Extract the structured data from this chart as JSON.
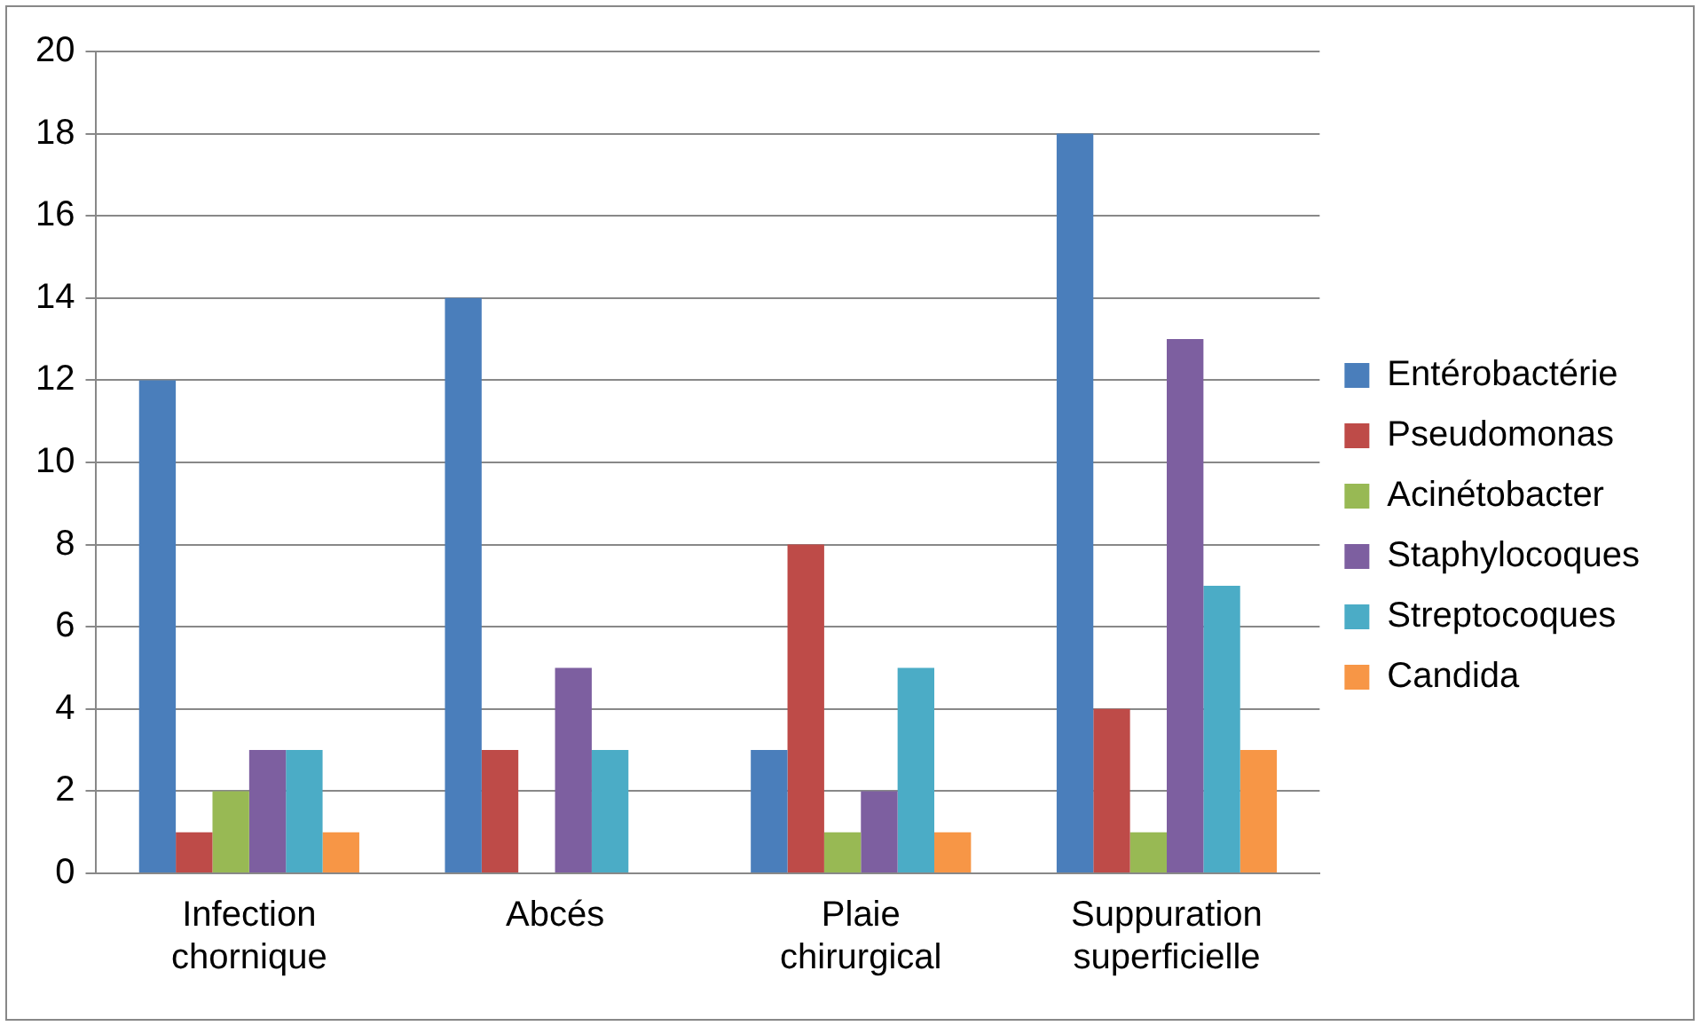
{
  "chart_data": {
    "type": "bar",
    "categories": [
      "Infection chornique",
      "Abcés",
      "Plaie chirurgical",
      "Suppuration superficielle"
    ],
    "series": [
      {
        "name": "Entérobactérie",
        "color": "#4a7ebb",
        "values": [
          12,
          14,
          3,
          18
        ]
      },
      {
        "name": "Pseudomonas",
        "color": "#be4b48",
        "values": [
          1,
          3,
          8,
          4
        ]
      },
      {
        "name": "Acinétobacter",
        "color": "#98b954",
        "values": [
          2,
          0,
          1,
          1
        ]
      },
      {
        "name": "Staphylocoques",
        "color": "#7d5fa0",
        "values": [
          3,
          5,
          2,
          13
        ]
      },
      {
        "name": "Streptocoques",
        "color": "#4bacc6",
        "values": [
          3,
          3,
          5,
          7
        ]
      },
      {
        "name": "Candida",
        "color": "#f79646",
        "values": [
          1,
          0,
          1,
          3
        ]
      }
    ],
    "ylim": [
      0,
      20
    ],
    "yticks": [
      0,
      2,
      4,
      6,
      8,
      10,
      12,
      14,
      16,
      18,
      20
    ],
    "grid": "y",
    "legend": "right"
  }
}
